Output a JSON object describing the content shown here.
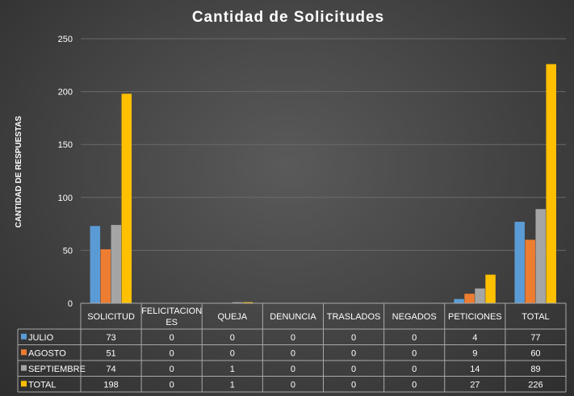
{
  "chart_data": {
    "type": "bar",
    "title": "Cantidad de Solicitudes",
    "ylabel": "CANTIDAD DE RESPUESTAS",
    "xlabel": "",
    "ylim": [
      0,
      250
    ],
    "yticks": [
      0,
      50,
      100,
      150,
      200,
      250
    ],
    "grid": true,
    "legend": "data-table",
    "categories": [
      [
        "SOLICITUD"
      ],
      [
        "FELICITACION",
        "ES"
      ],
      [
        "QUEJA"
      ],
      [
        "DENUNCIA"
      ],
      [
        "TRASLADOS"
      ],
      [
        "NEGADOS"
      ],
      [
        "PETICIONES"
      ],
      [
        "TOTAL"
      ]
    ],
    "series": [
      {
        "name": "JULIO",
        "color": "#5b9bd5",
        "values": [
          73,
          0,
          0,
          0,
          0,
          0,
          4,
          77
        ]
      },
      {
        "name": "AGOSTO",
        "color": "#ed7d31",
        "values": [
          51,
          0,
          0,
          0,
          0,
          0,
          9,
          60
        ]
      },
      {
        "name": "SEPTIEMBRE",
        "color": "#a5a5a5",
        "values": [
          74,
          0,
          1,
          0,
          0,
          0,
          14,
          89
        ]
      },
      {
        "name": "TOTAL",
        "color": "#ffc000",
        "values": [
          198,
          0,
          1,
          0,
          0,
          0,
          27,
          226
        ]
      }
    ]
  }
}
